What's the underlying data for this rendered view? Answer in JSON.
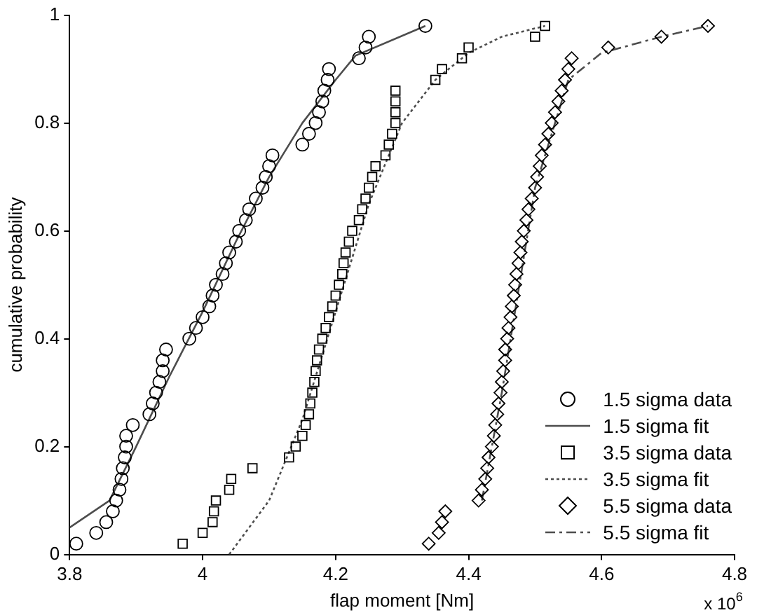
{
  "chart_data": {
    "type": "scatter",
    "xlabel": "flap moment [Nm]",
    "ylabel": "cumulative probability",
    "xlim": [
      3.8,
      4.8
    ],
    "ylim": [
      0,
      1
    ],
    "xticks": [
      3.8,
      4,
      4.2,
      4.4,
      4.6,
      4.8
    ],
    "yticks": [
      0,
      0.2,
      0.4,
      0.6,
      0.8,
      1
    ],
    "legend": "bottom right",
    "annotations": [
      "x 10$^{6}$"
    ],
    "series": [
      {
        "name": "1.5 sigma data",
        "marker": "circle",
        "color": "#000000",
        "x": [
          3.81,
          3.84,
          3.855,
          3.865,
          3.87,
          3.875,
          3.878,
          3.88,
          3.883,
          3.885,
          3.885,
          3.895,
          3.92,
          3.925,
          3.93,
          3.935,
          3.94,
          3.94,
          3.945,
          3.98,
          3.99,
          4.0,
          4.01,
          4.015,
          4.02,
          4.03,
          4.035,
          4.04,
          4.05,
          4.055,
          4.065,
          4.07,
          4.08,
          4.09,
          4.095,
          4.1,
          4.105,
          4.15,
          4.16,
          4.17,
          4.175,
          4.18,
          4.183,
          4.188,
          4.19,
          4.235,
          4.245,
          4.25,
          4.335
        ],
        "values": [
          0.02,
          0.04,
          0.06,
          0.08,
          0.1,
          0.12,
          0.14,
          0.16,
          0.18,
          0.2,
          0.22,
          0.24,
          0.26,
          0.28,
          0.3,
          0.32,
          0.34,
          0.36,
          0.38,
          0.4,
          0.42,
          0.44,
          0.46,
          0.48,
          0.5,
          0.52,
          0.54,
          0.56,
          0.58,
          0.6,
          0.62,
          0.64,
          0.66,
          0.68,
          0.7,
          0.72,
          0.74,
          0.76,
          0.78,
          0.8,
          0.82,
          0.84,
          0.86,
          0.88,
          0.9,
          0.92,
          0.94,
          0.96,
          0.98
        ]
      },
      {
        "name": "1.5 sigma fit",
        "type": "line",
        "marker": "none",
        "line_style": "solid",
        "color": "#4d4d4d",
        "x": [
          3.8,
          3.86,
          3.9,
          3.95,
          4.0,
          4.05,
          4.1,
          4.15,
          4.2,
          4.23,
          4.335
        ],
        "values": [
          0.05,
          0.1,
          0.2,
          0.33,
          0.45,
          0.58,
          0.7,
          0.8,
          0.88,
          0.925,
          0.98
        ]
      },
      {
        "name": "3.5 sigma data",
        "marker": "square",
        "color": "#000000",
        "x": [
          3.97,
          4.0,
          4.015,
          4.017,
          4.02,
          4.04,
          4.043,
          4.075,
          4.13,
          4.14,
          4.15,
          4.155,
          4.16,
          4.162,
          4.165,
          4.168,
          4.17,
          4.172,
          4.175,
          4.18,
          4.185,
          4.19,
          4.195,
          4.2,
          4.205,
          4.21,
          4.212,
          4.215,
          4.22,
          4.225,
          4.235,
          4.24,
          4.245,
          4.25,
          4.255,
          4.26,
          4.275,
          4.28,
          4.285,
          4.29,
          4.29,
          4.29,
          4.29,
          4.35,
          4.36,
          4.39,
          4.4,
          4.5,
          4.515
        ],
        "values": [
          0.02,
          0.04,
          0.06,
          0.08,
          0.1,
          0.12,
          0.14,
          0.16,
          0.18,
          0.2,
          0.22,
          0.24,
          0.26,
          0.28,
          0.3,
          0.32,
          0.34,
          0.36,
          0.38,
          0.4,
          0.42,
          0.44,
          0.46,
          0.48,
          0.5,
          0.52,
          0.54,
          0.56,
          0.58,
          0.6,
          0.62,
          0.64,
          0.66,
          0.68,
          0.7,
          0.72,
          0.74,
          0.76,
          0.78,
          0.8,
          0.82,
          0.84,
          0.86,
          0.88,
          0.9,
          0.92,
          0.94,
          0.96,
          0.98
        ]
      },
      {
        "name": "3.5 sigma fit",
        "type": "line",
        "marker": "none",
        "line_style": "dotted",
        "color": "#4d4d4d",
        "x": [
          4.04,
          4.07,
          4.1,
          4.15,
          4.2,
          4.25,
          4.3,
          4.35,
          4.4,
          4.45,
          4.515
        ],
        "values": [
          0,
          0.05,
          0.1,
          0.25,
          0.45,
          0.65,
          0.8,
          0.88,
          0.93,
          0.96,
          0.98
        ]
      },
      {
        "name": "5.5 sigma data",
        "marker": "diamond",
        "color": "#000000",
        "x": [
          4.34,
          4.355,
          4.36,
          4.365,
          4.415,
          4.42,
          4.425,
          4.428,
          4.43,
          4.435,
          4.438,
          4.44,
          4.443,
          4.445,
          4.448,
          4.45,
          4.452,
          4.455,
          4.455,
          4.458,
          4.46,
          4.463,
          4.465,
          4.468,
          4.47,
          4.472,
          4.475,
          4.478,
          4.48,
          4.483,
          4.487,
          4.49,
          4.495,
          4.5,
          4.503,
          4.507,
          4.51,
          4.515,
          4.52,
          4.525,
          4.53,
          4.535,
          4.54,
          4.545,
          4.55,
          4.555,
          4.61,
          4.69,
          4.76
        ],
        "values": [
          0.02,
          0.04,
          0.06,
          0.08,
          0.1,
          0.12,
          0.14,
          0.16,
          0.18,
          0.2,
          0.22,
          0.24,
          0.26,
          0.28,
          0.3,
          0.32,
          0.34,
          0.36,
          0.38,
          0.4,
          0.42,
          0.44,
          0.46,
          0.48,
          0.5,
          0.52,
          0.54,
          0.56,
          0.58,
          0.6,
          0.62,
          0.64,
          0.66,
          0.68,
          0.7,
          0.72,
          0.74,
          0.76,
          0.78,
          0.8,
          0.82,
          0.84,
          0.86,
          0.88,
          0.9,
          0.92,
          0.94,
          0.96,
          0.98
        ]
      },
      {
        "name": "5.5 sigma fit",
        "type": "line",
        "marker": "none",
        "line_style": "dashdot",
        "color": "#4d4d4d",
        "x": [
          4.42,
          4.45,
          4.5,
          4.55,
          4.6,
          4.69,
          4.76
        ],
        "values": [
          0.1,
          0.3,
          0.68,
          0.88,
          0.93,
          0.96,
          0.98
        ]
      }
    ]
  }
}
